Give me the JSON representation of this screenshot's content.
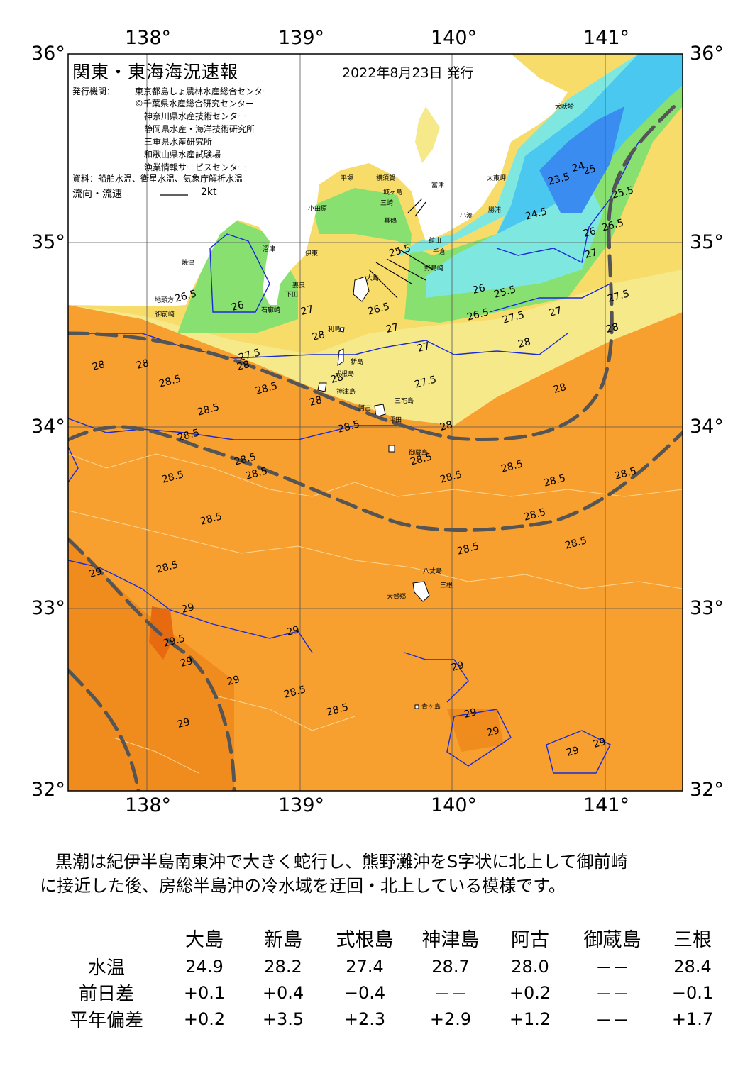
{
  "map": {
    "title": "関東・東海海況速報",
    "date": "2022年8月23日 発行",
    "issuer_label": "発行機関：",
    "issuers": [
      "東京都島しょ農林水産総合センター",
      "©千葉県水産総合研究センター",
      "神奈川県水産技術センター",
      "静岡県水産・海洋技術研究所",
      "三重県水産研究所",
      "和歌山県水産試験場",
      "漁業情報サービスセンター"
    ],
    "source": "資料：船舶水温、衛星水温、気象庁解析水温",
    "flow_label": "流向・流速",
    "flow_value": "2kt",
    "lon_labels": [
      "138°",
      "139°",
      "140°",
      "141°"
    ],
    "lat_labels": [
      "36°",
      "35°",
      "34°",
      "33°",
      "32°"
    ],
    "places": {
      "inubo": "犬吠埼",
      "taito": "太東岬",
      "katsuura": "勝浦",
      "kominato": "小湊",
      "futtsu": "富津",
      "tateyama": "館山",
      "chikura": "千倉",
      "nojima": "野島崎",
      "odawara": "小田原",
      "hiratsuka": "平塚",
      "yokosuka": "横須賀",
      "jogashima": "城ヶ島",
      "misaki": "三崎",
      "manazuru": "真鶴",
      "ito": "伊東",
      "numazu": "沼津",
      "yaizu": "焼津",
      "mera": "妻良",
      "shimoda": "下田",
      "irozaki": "石廊崎",
      "jizo": "地頭方",
      "omaezaki": "御前崎",
      "toshima": "利島",
      "niijima": "新島",
      "shikine": "式根島",
      "kozu": "神津島",
      "miyake": "三宅島",
      "ako": "阿古",
      "tsubota": "坪田",
      "mikura": "御蔵島",
      "hachijo": "八丈島",
      "mitsune": "三根",
      "okago": "大賀郷",
      "aogashima": "青ヶ島",
      "oshima": "大島"
    },
    "isotherms": [
      "23.5",
      "24",
      "24.5",
      "25",
      "25.5",
      "26",
      "26.5",
      "27",
      "27.5",
      "28",
      "28.5",
      "29",
      "29.5"
    ]
  },
  "summary": {
    "line1": "黒潮は紀伊半島南東沖で大きく蛇行し、熊野灘沖をS字状に北上して御前崎",
    "line2": "に接近した後、房総半島沖の冷水域を迂回・北上している模様です。"
  },
  "table": {
    "columns": [
      "大島",
      "新島",
      "式根島",
      "神津島",
      "阿古",
      "御蔵島",
      "三根"
    ],
    "rows": [
      {
        "label": "水温",
        "values": [
          "24.9",
          "28.2",
          "27.4",
          "28.7",
          "28.0",
          "－－",
          "28.4"
        ]
      },
      {
        "label": "前日差",
        "values": [
          "+0.1",
          "+0.4",
          "−0.4",
          "－－",
          "+0.2",
          "－－",
          "−0.1"
        ]
      },
      {
        "label": "平年偏差",
        "values": [
          "+0.2",
          "+3.5",
          "+2.3",
          "+2.9",
          "+1.2",
          "－－",
          "+1.7"
        ]
      }
    ]
  },
  "colors": {
    "sea_warm": "#f7a030",
    "sea_hot": "#f08c1e",
    "sea_hotter": "#e86a10",
    "sea_yellow": "#f8dc6a",
    "sea_light_yellow": "#f5e98a",
    "sea_green": "#88e070",
    "sea_cyan": "#7ee8e0",
    "sea_blue": "#4bc8f0",
    "sea_deep_blue": "#3a8cf0",
    "isotherm_blue": "#1a2ad8",
    "kuroshio_axis": "#555555"
  }
}
